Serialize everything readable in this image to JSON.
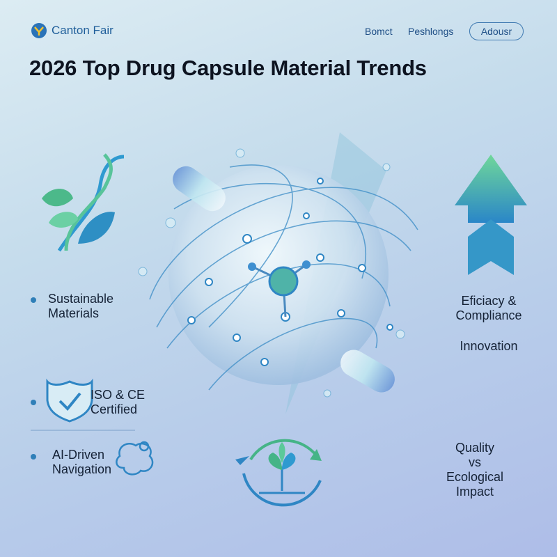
{
  "header": {
    "logo": "Canton Fair",
    "nav": [
      "Bomct",
      "Peshlongs"
    ],
    "button": "Adousr"
  },
  "title": "2026 Top Drug Capsule Material Trends",
  "left_items": [
    {
      "lines": [
        "Sustainable",
        "Materials"
      ]
    },
    {
      "lines": [
        "ISO & CE",
        "Certified"
      ]
    },
    {
      "lines": [
        "AI-Driven",
        "Navigation"
      ]
    }
  ],
  "right_items": [
    {
      "lines": [
        "Eficiacy &",
        "Compliance"
      ]
    },
    {
      "lines": [
        "Innovation"
      ]
    },
    {
      "lines": [
        "Quality",
        "vs",
        "Ecological",
        "Impact"
      ]
    }
  ]
}
